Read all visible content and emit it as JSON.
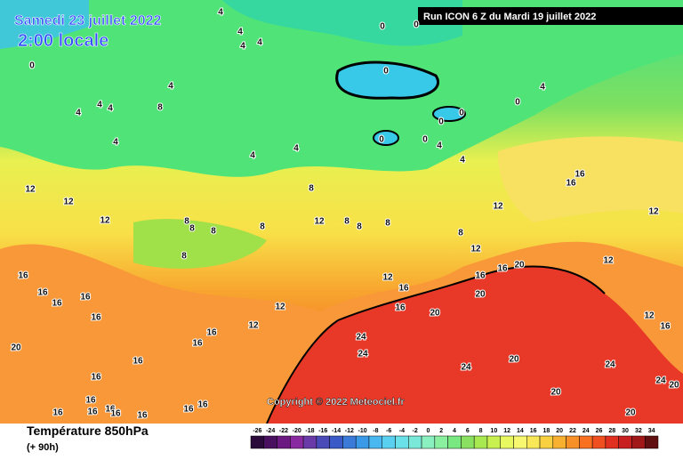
{
  "header": {
    "date": "Samedi 23 juillet 2022",
    "time": "2:00 locale",
    "run": "Run ICON 6 Z du Mardi 19 juillet 2022"
  },
  "copyright": "Copyright © 2022 Meteociel.fr",
  "footer": {
    "title": "Température 850hPa",
    "lead": "(+ 90h)"
  },
  "legend": {
    "labels": [
      -26,
      -24,
      -22,
      -20,
      -18,
      -16,
      -14,
      -12,
      -10,
      -8,
      -6,
      -4,
      -2,
      0,
      2,
      4,
      6,
      8,
      10,
      12,
      14,
      16,
      18,
      20,
      22,
      24,
      26,
      28,
      30,
      32,
      34
    ],
    "colors": [
      "#2a0a3a",
      "#4a1060",
      "#6a1a80",
      "#8a2aa0",
      "#6a3aa8",
      "#4a4ab8",
      "#3a5ac8",
      "#3a7ad8",
      "#3a9ae8",
      "#4ab8f0",
      "#5ad0f0",
      "#6ae0e8",
      "#7ae8d8",
      "#8af0c0",
      "#8af0a0",
      "#7ae880",
      "#8ae060",
      "#a8e850",
      "#c8f050",
      "#e8f860",
      "#f8f870",
      "#f8e858",
      "#f8d040",
      "#f8b030",
      "#f89028",
      "#f87020",
      "#f05020",
      "#e03020",
      "#c82020",
      "#a01818",
      "#601010"
    ]
  },
  "contours": [
    4,
    4,
    4,
    4,
    0,
    0,
    0,
    4,
    4,
    4,
    4,
    8,
    0,
    0,
    0,
    0,
    0,
    0,
    4,
    4,
    4,
    4,
    4,
    4,
    8,
    12,
    12,
    12,
    8,
    8,
    8,
    8,
    8,
    12,
    8,
    8,
    8,
    8,
    12,
    12,
    16,
    16,
    12,
    12,
    12,
    16,
    16,
    16,
    20,
    20,
    16,
    20,
    12,
    12,
    16,
    16,
    16,
    16,
    16,
    16,
    16,
    20,
    16,
    16,
    24,
    24,
    24,
    20,
    24,
    24,
    20,
    20,
    20,
    12,
    16,
    16,
    16,
    16,
    16,
    16,
    16,
    16,
    16
  ]
}
